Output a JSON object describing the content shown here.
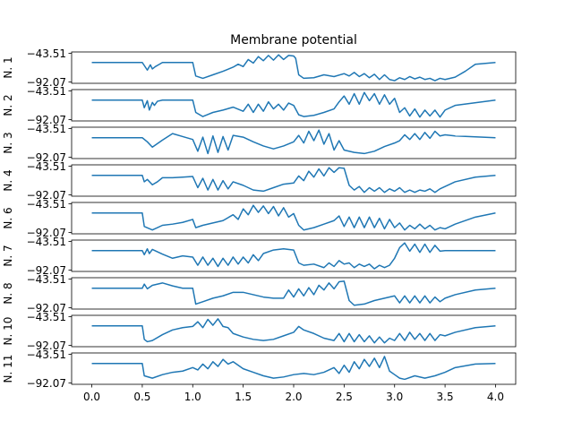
{
  "chart_data": {
    "type": "line",
    "title": "Membrane potential",
    "color": "#1f77b4",
    "xlim": [
      -0.2,
      4.2
    ],
    "ylim": [
      -92.07,
      -43.51
    ],
    "ytick_labels": [
      "−43.51",
      "−92.07"
    ],
    "xticks": [
      0.0,
      0.5,
      1.0,
      1.5,
      2.0,
      2.5,
      3.0,
      3.5,
      4.0
    ],
    "xtick_labels": [
      "0.0",
      "0.5",
      "1.0",
      "1.5",
      "2.0",
      "2.5",
      "3.0",
      "3.5",
      "4.0"
    ],
    "series": [
      {
        "name": "N. 1",
        "x": [
          0,
          0.5,
          0.55,
          0.58,
          0.6,
          0.63,
          0.66,
          0.7,
          1.0,
          1.03,
          1.1,
          1.2,
          1.3,
          1.4,
          1.45,
          1.5,
          1.55,
          1.6,
          1.65,
          1.7,
          1.75,
          1.8,
          1.85,
          1.9,
          1.95,
          2.0,
          2.02,
          2.05,
          2.1,
          2.2,
          2.3,
          2.4,
          2.5,
          2.55,
          2.6,
          2.65,
          2.7,
          2.75,
          2.8,
          2.85,
          2.9,
          2.95,
          3.0,
          3.05,
          3.1,
          3.15,
          3.2,
          3.25,
          3.3,
          3.35,
          3.4,
          3.45,
          3.5,
          3.6,
          3.7,
          3.8,
          4.0
        ],
        "y": [
          -59,
          -59,
          -72,
          -63,
          -70,
          -66,
          -63,
          -59,
          -59,
          -82,
          -86,
          -80,
          -74,
          -67,
          -62,
          -66,
          -54,
          -60,
          -49,
          -56,
          -47,
          -55,
          -46,
          -54,
          -47,
          -48,
          -52,
          -80,
          -86,
          -85,
          -80,
          -83,
          -78,
          -82,
          -76,
          -83,
          -78,
          -85,
          -79,
          -88,
          -80,
          -88,
          -90,
          -85,
          -88,
          -83,
          -87,
          -84,
          -88,
          -86,
          -90,
          -86,
          -88,
          -84,
          -74,
          -62,
          -59
        ]
      },
      {
        "name": "N. 2",
        "x": [
          0,
          0.5,
          0.52,
          0.55,
          0.57,
          0.6,
          0.62,
          0.65,
          0.7,
          1.0,
          1.03,
          1.1,
          1.2,
          1.3,
          1.4,
          1.5,
          1.55,
          1.6,
          1.65,
          1.7,
          1.75,
          1.8,
          1.85,
          1.9,
          1.95,
          2.0,
          2.05,
          2.1,
          2.2,
          2.3,
          2.4,
          2.45,
          2.5,
          2.55,
          2.6,
          2.65,
          2.7,
          2.75,
          2.8,
          2.85,
          2.9,
          2.95,
          3.0,
          3.05,
          3.1,
          3.15,
          3.2,
          3.25,
          3.3,
          3.35,
          3.4,
          3.45,
          3.5,
          3.6,
          4.0
        ],
        "y": [
          -59,
          -59,
          -72,
          -60,
          -76,
          -63,
          -68,
          -61,
          -59,
          -59,
          -80,
          -87,
          -80,
          -76,
          -71,
          -78,
          -66,
          -80,
          -66,
          -78,
          -62,
          -74,
          -66,
          -76,
          -64,
          -68,
          -84,
          -87,
          -85,
          -80,
          -74,
          -62,
          -52,
          -66,
          -48,
          -66,
          -46,
          -60,
          -48,
          -66,
          -50,
          -66,
          -56,
          -80,
          -72,
          -86,
          -74,
          -88,
          -76,
          -86,
          -76,
          -88,
          -76,
          -68,
          -59
        ]
      },
      {
        "name": "N. 3",
        "x": [
          0,
          0.5,
          0.55,
          0.6,
          0.7,
          0.8,
          0.9,
          1.0,
          1.05,
          1.1,
          1.15,
          1.2,
          1.25,
          1.3,
          1.35,
          1.4,
          1.5,
          1.6,
          1.7,
          1.8,
          1.9,
          2.0,
          2.05,
          2.1,
          2.15,
          2.2,
          2.25,
          2.3,
          2.35,
          2.4,
          2.45,
          2.5,
          2.6,
          2.7,
          2.8,
          2.9,
          3.0,
          3.05,
          3.1,
          3.15,
          3.2,
          3.25,
          3.3,
          3.35,
          3.4,
          3.45,
          3.5,
          3.6,
          4.0
        ],
        "y": [
          -59,
          -59,
          -66,
          -75,
          -63,
          -52,
          -57,
          -62,
          -82,
          -58,
          -86,
          -56,
          -84,
          -57,
          -80,
          -55,
          -58,
          -66,
          -73,
          -78,
          -73,
          -66,
          -55,
          -68,
          -48,
          -64,
          -46,
          -70,
          -52,
          -80,
          -64,
          -80,
          -84,
          -86,
          -82,
          -74,
          -68,
          -64,
          -54,
          -62,
          -52,
          -62,
          -50,
          -60,
          -48,
          -56,
          -54,
          -56,
          -59
        ]
      },
      {
        "name": "N. 4",
        "x": [
          0,
          0.5,
          0.52,
          0.55,
          0.6,
          0.65,
          0.7,
          0.8,
          0.9,
          1.0,
          1.05,
          1.1,
          1.15,
          1.2,
          1.25,
          1.3,
          1.35,
          1.4,
          1.5,
          1.6,
          1.7,
          1.8,
          1.9,
          2.0,
          2.05,
          2.1,
          2.15,
          2.2,
          2.25,
          2.3,
          2.35,
          2.4,
          2.45,
          2.5,
          2.55,
          2.6,
          2.65,
          2.7,
          2.75,
          2.8,
          2.85,
          2.9,
          2.95,
          3.0,
          3.05,
          3.1,
          3.15,
          3.2,
          3.25,
          3.3,
          3.35,
          3.4,
          3.45,
          3.5,
          3.6,
          3.8,
          4.0
        ],
        "y": [
          -59,
          -59,
          -70,
          -66,
          -75,
          -70,
          -63,
          -63,
          -62,
          -61,
          -80,
          -64,
          -84,
          -66,
          -84,
          -68,
          -82,
          -70,
          -76,
          -84,
          -86,
          -80,
          -74,
          -72,
          -60,
          -68,
          -52,
          -62,
          -48,
          -60,
          -46,
          -54,
          -46,
          -47,
          -76,
          -84,
          -78,
          -88,
          -80,
          -86,
          -80,
          -88,
          -82,
          -86,
          -80,
          -88,
          -84,
          -88,
          -84,
          -86,
          -82,
          -88,
          -82,
          -78,
          -70,
          -62,
          -59
        ]
      },
      {
        "name": "N. 6",
        "x": [
          0,
          0.5,
          0.52,
          0.6,
          0.7,
          0.8,
          0.9,
          1.0,
          1.03,
          1.1,
          1.2,
          1.3,
          1.4,
          1.45,
          1.5,
          1.55,
          1.6,
          1.65,
          1.7,
          1.75,
          1.8,
          1.85,
          1.9,
          1.95,
          2.0,
          2.05,
          2.1,
          2.2,
          2.3,
          2.4,
          2.45,
          2.5,
          2.55,
          2.6,
          2.65,
          2.7,
          2.75,
          2.8,
          2.85,
          2.9,
          2.95,
          3.0,
          3.05,
          3.1,
          3.15,
          3.2,
          3.25,
          3.3,
          3.35,
          3.4,
          3.45,
          3.5,
          3.6,
          3.8,
          4.0
        ],
        "y": [
          -59,
          -59,
          -82,
          -88,
          -80,
          -78,
          -75,
          -70,
          -84,
          -80,
          -76,
          -72,
          -62,
          -70,
          -52,
          -62,
          -46,
          -58,
          -47,
          -60,
          -48,
          -64,
          -50,
          -66,
          -60,
          -80,
          -88,
          -84,
          -78,
          -72,
          -64,
          -82,
          -66,
          -84,
          -66,
          -84,
          -66,
          -84,
          -68,
          -86,
          -70,
          -84,
          -76,
          -88,
          -80,
          -86,
          -78,
          -86,
          -80,
          -88,
          -84,
          -86,
          -78,
          -66,
          -59
        ]
      },
      {
        "name": "N. 7",
        "x": [
          0,
          0.5,
          0.52,
          0.55,
          0.57,
          0.6,
          0.7,
          0.8,
          0.9,
          1.0,
          1.05,
          1.1,
          1.15,
          1.2,
          1.25,
          1.3,
          1.35,
          1.4,
          1.45,
          1.5,
          1.55,
          1.6,
          1.65,
          1.7,
          1.8,
          1.9,
          2.0,
          2.05,
          2.1,
          2.2,
          2.3,
          2.35,
          2.4,
          2.45,
          2.5,
          2.55,
          2.6,
          2.65,
          2.7,
          2.75,
          2.8,
          2.85,
          2.9,
          2.95,
          3.0,
          3.05,
          3.1,
          3.15,
          3.2,
          3.25,
          3.3,
          3.35,
          3.4,
          3.45,
          3.5,
          3.6,
          4.0
        ],
        "y": [
          -59,
          -59,
          -66,
          -56,
          -64,
          -57,
          -65,
          -72,
          -68,
          -70,
          -84,
          -70,
          -84,
          -72,
          -86,
          -72,
          -84,
          -70,
          -82,
          -70,
          -80,
          -66,
          -76,
          -64,
          -58,
          -56,
          -58,
          -80,
          -84,
          -82,
          -88,
          -80,
          -86,
          -76,
          -82,
          -80,
          -88,
          -82,
          -86,
          -82,
          -90,
          -84,
          -88,
          -84,
          -72,
          -54,
          -46,
          -60,
          -48,
          -62,
          -48,
          -62,
          -50,
          -60,
          -59,
          -59,
          -59
        ]
      },
      {
        "name": "N. 8",
        "x": [
          0,
          0.5,
          0.52,
          0.55,
          0.6,
          0.7,
          0.8,
          0.9,
          1.0,
          1.03,
          1.1,
          1.2,
          1.3,
          1.4,
          1.5,
          1.6,
          1.7,
          1.8,
          1.9,
          1.95,
          2.0,
          2.05,
          2.1,
          2.15,
          2.2,
          2.25,
          2.3,
          2.35,
          2.4,
          2.45,
          2.5,
          2.55,
          2.6,
          2.7,
          2.8,
          2.9,
          3.0,
          3.05,
          3.1,
          3.15,
          3.2,
          3.25,
          3.3,
          3.35,
          3.4,
          3.45,
          3.5,
          3.6,
          3.8,
          4.0
        ],
        "y": [
          -59,
          -59,
          -52,
          -60,
          -54,
          -50,
          -55,
          -59,
          -59,
          -86,
          -82,
          -76,
          -72,
          -66,
          -66,
          -70,
          -74,
          -76,
          -76,
          -62,
          -74,
          -60,
          -72,
          -58,
          -70,
          -54,
          -62,
          -50,
          -60,
          -48,
          -47,
          -80,
          -88,
          -86,
          -80,
          -76,
          -72,
          -84,
          -72,
          -84,
          -72,
          -84,
          -72,
          -84,
          -74,
          -82,
          -76,
          -70,
          -62,
          -59
        ]
      },
      {
        "name": "N. 10",
        "x": [
          0,
          0.5,
          0.52,
          0.55,
          0.6,
          0.7,
          0.8,
          0.9,
          1.0,
          1.05,
          1.1,
          1.15,
          1.2,
          1.25,
          1.3,
          1.35,
          1.4,
          1.5,
          1.6,
          1.7,
          1.8,
          1.9,
          2.0,
          2.05,
          2.1,
          2.2,
          2.3,
          2.4,
          2.45,
          2.5,
          2.55,
          2.6,
          2.65,
          2.7,
          2.75,
          2.8,
          2.85,
          2.9,
          2.95,
          3.0,
          3.05,
          3.1,
          3.15,
          3.2,
          3.25,
          3.3,
          3.35,
          3.4,
          3.45,
          3.5,
          3.6,
          3.8,
          4.0
        ],
        "y": [
          -59,
          -59,
          -82,
          -86,
          -84,
          -74,
          -66,
          -62,
          -60,
          -52,
          -62,
          -48,
          -58,
          -47,
          -60,
          -62,
          -72,
          -78,
          -82,
          -84,
          -82,
          -76,
          -70,
          -60,
          -66,
          -72,
          -80,
          -84,
          -72,
          -86,
          -72,
          -86,
          -74,
          -86,
          -76,
          -88,
          -78,
          -88,
          -80,
          -84,
          -72,
          -84,
          -70,
          -82,
          -72,
          -84,
          -72,
          -84,
          -74,
          -76,
          -70,
          -62,
          -59
        ]
      },
      {
        "name": "N. 11",
        "x": [
          0,
          0.5,
          0.52,
          0.6,
          0.7,
          0.8,
          0.9,
          1.0,
          1.05,
          1.1,
          1.15,
          1.2,
          1.25,
          1.3,
          1.35,
          1.4,
          1.5,
          1.6,
          1.7,
          1.8,
          1.9,
          2.0,
          2.1,
          2.2,
          2.3,
          2.4,
          2.45,
          2.5,
          2.55,
          2.6,
          2.65,
          2.7,
          2.75,
          2.8,
          2.85,
          2.9,
          2.95,
          3.0,
          3.05,
          3.1,
          3.2,
          3.3,
          3.4,
          3.5,
          3.6,
          3.8,
          4.0
        ],
        "y": [
          -59,
          -59,
          -80,
          -84,
          -78,
          -74,
          -72,
          -66,
          -70,
          -60,
          -68,
          -56,
          -64,
          -52,
          -60,
          -56,
          -68,
          -74,
          -80,
          -84,
          -82,
          -78,
          -76,
          -78,
          -74,
          -66,
          -76,
          -62,
          -74,
          -56,
          -68,
          -52,
          -64,
          -50,
          -66,
          -47,
          -72,
          -78,
          -84,
          -86,
          -80,
          -84,
          -80,
          -74,
          -66,
          -60,
          -59
        ]
      }
    ]
  }
}
